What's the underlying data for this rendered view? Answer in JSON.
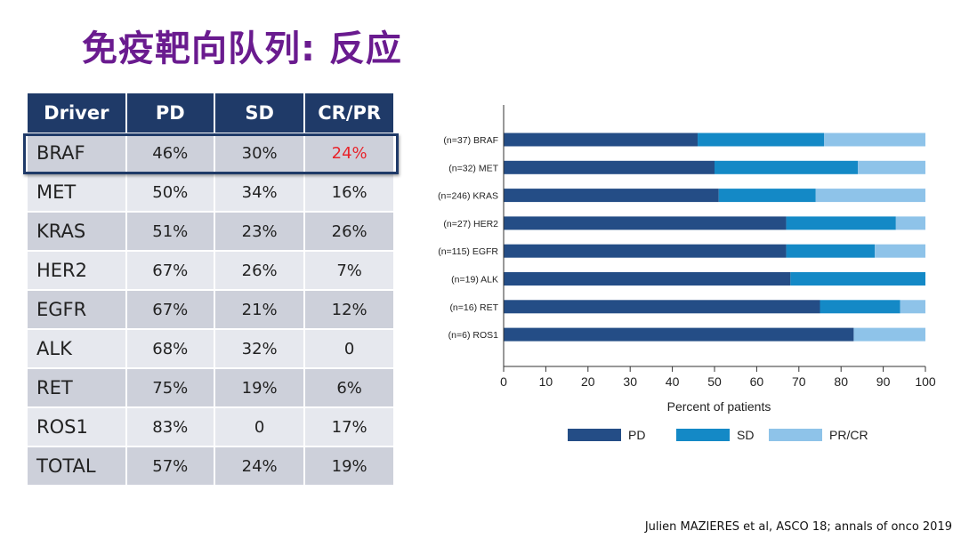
{
  "title": "免疫靶向队列: 反应",
  "table": {
    "headers": [
      "Driver",
      "PD",
      "SD",
      "CR/PR"
    ],
    "rows": [
      {
        "driver": "BRAF",
        "pd": "46%",
        "sd": "30%",
        "crpr": "24%"
      },
      {
        "driver": "MET",
        "pd": "50%",
        "sd": "34%",
        "crpr": "16%"
      },
      {
        "driver": "KRAS",
        "pd": "51%",
        "sd": "23%",
        "crpr": "26%"
      },
      {
        "driver": "HER2",
        "pd": "67%",
        "sd": "26%",
        "crpr": "7%"
      },
      {
        "driver": "EGFR",
        "pd": "67%",
        "sd": "21%",
        "crpr": "12%"
      },
      {
        "driver": "ALK",
        "pd": "68%",
        "sd": "32%",
        "crpr": "0"
      },
      {
        "driver": "RET",
        "pd": "75%",
        "sd": "19%",
        "crpr": "6%"
      },
      {
        "driver": "ROS1",
        "pd": "83%",
        "sd": "0",
        "crpr": "17%"
      },
      {
        "driver": "TOTAL",
        "pd": "57%",
        "sd": "24%",
        "crpr": "19%"
      }
    ]
  },
  "chart_data": {
    "type": "bar",
    "orientation": "horizontal",
    "stacked": true,
    "categories": [
      "(n=37) BRAF",
      "(n=32) MET",
      "(n=246) KRAS",
      "(n=27) HER2",
      "(n=115) EGFR",
      "(n=19) ALK",
      "(n=16) RET",
      "(n=6) ROS1"
    ],
    "series": [
      {
        "name": "PD",
        "color": "#244d86",
        "values": [
          46,
          50,
          51,
          67,
          67,
          68,
          75,
          83
        ]
      },
      {
        "name": "SD",
        "color": "#1489c6",
        "values": [
          30,
          34,
          23,
          26,
          21,
          32,
          19,
          0
        ]
      },
      {
        "name": "PR/CR",
        "color": "#8ec3e9",
        "values": [
          24,
          16,
          26,
          7,
          12,
          0,
          6,
          17
        ]
      }
    ],
    "xlabel": "Percent of patients",
    "ylabel": "",
    "xlim": [
      0,
      100
    ],
    "xticks": [
      0,
      10,
      20,
      30,
      40,
      50,
      60,
      70,
      80,
      90,
      100
    ],
    "legend_position": "bottom",
    "grid": false
  },
  "citation": "Julien MAZIERES et al, ASCO 18; annals of onco 2019"
}
